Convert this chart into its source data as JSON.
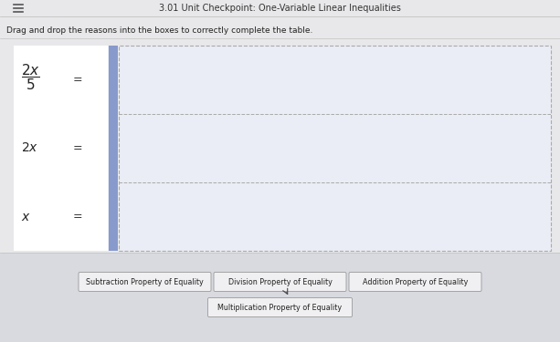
{
  "title": "3.01 Unit Checkpoint: One-Variable Linear Inequalities",
  "instruction": "Drag and drop the reasons into the boxes to correctly complete the table.",
  "header_bg": "#e8e8ea",
  "page_bg": "#dcdde0",
  "content_bg": "#e8e8ea",
  "table_bg": "#e8eaf0",
  "left_col_bg": "#8899cc",
  "dashed_color": "#aaaaaa",
  "buttons": [
    "Subtraction Property of Equality",
    "Division Property of Equality",
    "Addition Property of Equality",
    "Multiplication Property of Equality"
  ],
  "button_bg": "#f0f0f2",
  "button_border": "#999999",
  "figsize": [
    6.13,
    3.75
  ],
  "dpi": 100
}
